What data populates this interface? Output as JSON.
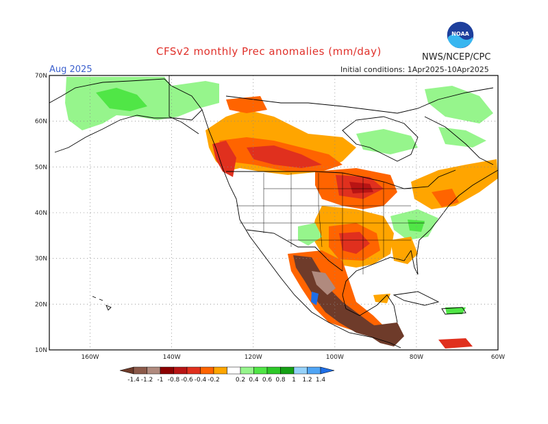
{
  "header": {
    "title": "CFSv2 monthly Prec anomalies (mm/day)",
    "agency": "NWS/NCEP/CPC",
    "logo_text": "NOAA",
    "month": "Aug 2025",
    "initial_conditions": "Initial conditions: 1Apr2025-10Apr2025"
  },
  "map": {
    "projection": "lat-lon",
    "lon_range": [
      -170,
      -60
    ],
    "lat_range": [
      10,
      70
    ],
    "lat_labels": [
      "70N",
      "60N",
      "50N",
      "40N",
      "30N",
      "20N",
      "10N"
    ],
    "lon_labels": [
      "160W",
      "140W",
      "120W",
      "100W",
      "80W",
      "60W"
    ],
    "grid": true,
    "grid_style": "dotted"
  },
  "colorbar": {
    "labels": [
      "-1.4",
      "-1.2",
      "-1",
      "-0.8",
      "-0.6",
      "-0.4",
      "-0.2",
      "0.2",
      "0.4",
      "0.6",
      "0.8",
      "1",
      "1.2",
      "1.4"
    ],
    "colors": [
      "#6e3b2a",
      "#8c5a4a",
      "#b08a7e",
      "#8b0000",
      "#b81414",
      "#e0301e",
      "#ff6400",
      "#ffa500",
      "#ffffff",
      "#96f58c",
      "#50e646",
      "#2dc828",
      "#14a014",
      "#96d2fa",
      "#50a5f5",
      "#1e6ee6"
    ],
    "under_color": "#6e3b2a",
    "over_color": "#1e6ee6"
  },
  "anomaly_regions": [
    {
      "name": "Pacific Northwest / BC coast",
      "sign": "dry",
      "peak": -0.8
    },
    {
      "name": "Central Canadian prairies",
      "sign": "dry",
      "peak": -0.8
    },
    {
      "name": "Midwest / Great Lakes",
      "sign": "dry",
      "peak": -0.8
    },
    {
      "name": "Texas / Southern Plains",
      "sign": "dry",
      "peak": -0.8
    },
    {
      "name": "Northeast US / New England",
      "sign": "dry",
      "peak": -0.6
    },
    {
      "name": "Western Mexico",
      "sign": "dry",
      "peak": -1.4
    },
    {
      "name": "Southern Mexico / Central America",
      "sign": "dry",
      "peak": -1.4
    },
    {
      "name": "Alaska / Arctic",
      "sign": "wet",
      "peak": 0.4
    },
    {
      "name": "Hudson Bay / Quebec",
      "sign": "wet",
      "peak": 0.4
    },
    {
      "name": "Mid-Atlantic",
      "sign": "wet",
      "peak": 0.6
    },
    {
      "name": "Southwest US monsoon",
      "sign": "wet",
      "peak": 0.4
    }
  ]
}
